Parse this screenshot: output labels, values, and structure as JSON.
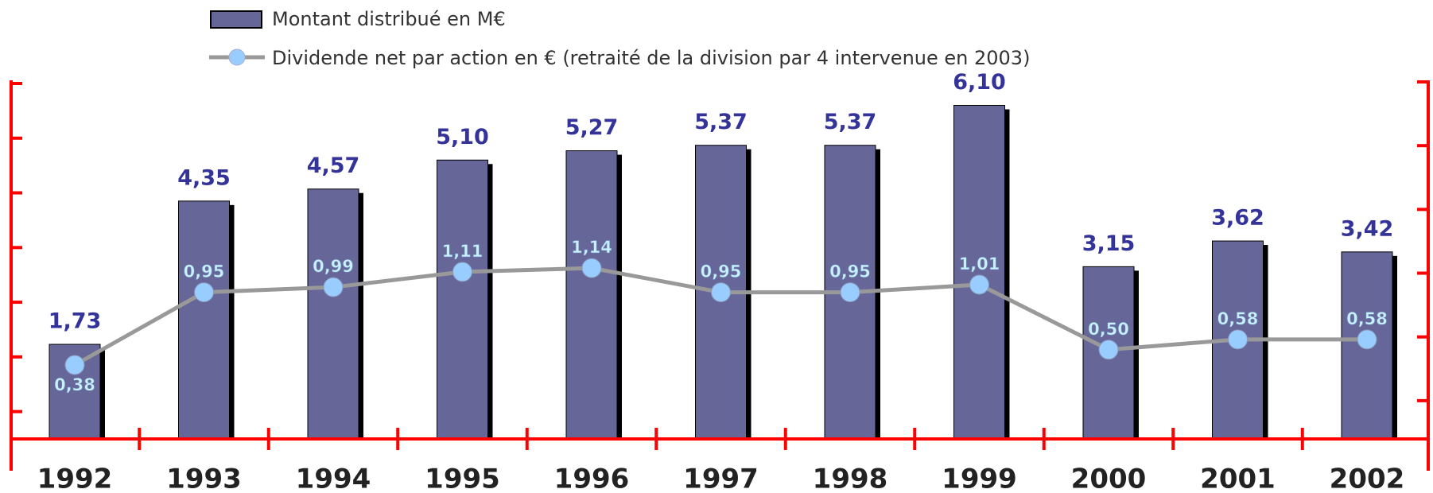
{
  "chart_data": {
    "type": "bar",
    "categories": [
      "1992",
      "1993",
      "1994",
      "1995",
      "1996",
      "1997",
      "1998",
      "1999",
      "2000",
      "2001",
      "2002"
    ],
    "ylim": [
      0,
      6.5
    ],
    "yticks": [
      0.5,
      1.5,
      2.5,
      3.5,
      4.5,
      5.5,
      6.5
    ],
    "y2lim": [
      -0.2,
      2.6
    ],
    "y2ticks": [
      0.1,
      0.6,
      1.1,
      1.6,
      2.1,
      2.6
    ],
    "series": [
      {
        "name": "Montant distribué en M€",
        "type": "bar",
        "color": "#666699",
        "values": [
          1.73,
          4.35,
          4.57,
          5.1,
          5.27,
          5.37,
          5.37,
          6.1,
          3.15,
          3.62,
          3.42
        ],
        "value_labels": [
          "1,73",
          "4,35",
          "4,57",
          "5,10",
          "5,27",
          "5,37",
          "5,37",
          "6,10",
          "3,15",
          "3,62",
          "3,42"
        ]
      },
      {
        "name": "Dividende net par action en € (retraité de la division par 4 intervenue en 2003)",
        "type": "line",
        "axis": "y2",
        "color": "#999999",
        "values": [
          0.38,
          0.95,
          0.99,
          1.11,
          1.14,
          0.95,
          0.95,
          1.01,
          0.5,
          0.58,
          0.58
        ],
        "value_labels": [
          "0,38",
          "0,95",
          "0,99",
          "1,11",
          "1,14",
          "0,95",
          "0,95",
          "1,01",
          "0,50",
          "0,58",
          "0,58"
        ]
      }
    ]
  }
}
